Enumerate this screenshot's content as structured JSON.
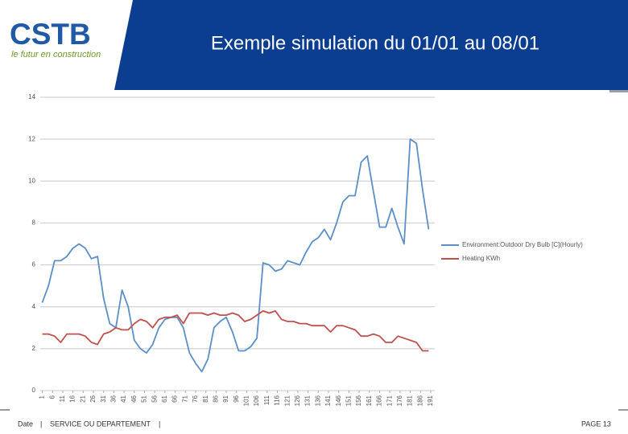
{
  "header": {
    "logo": "CSTB",
    "tagline": "le futur en construction"
  },
  "footer": {
    "date": "Date",
    "separator": "|",
    "department": "SERVICE OU DEPARTEMENT",
    "page": "PAGE 13"
  },
  "chart_data": {
    "type": "line",
    "title": "Exemple simulation du 01/01 au 08/01",
    "x": [
      1,
      4,
      7,
      10,
      13,
      16,
      19,
      22,
      25,
      28,
      31,
      34,
      37,
      40,
      43,
      46,
      49,
      52,
      55,
      58,
      61,
      64,
      67,
      70,
      73,
      76,
      79,
      82,
      85,
      88,
      91,
      94,
      97,
      100,
      103,
      106,
      109,
      112,
      115,
      118,
      121,
      124,
      127,
      130,
      133,
      136,
      139,
      142,
      145,
      148,
      151,
      154,
      157,
      160,
      163,
      166,
      169,
      172,
      175,
      178,
      181,
      184,
      187,
      190
    ],
    "series": [
      {
        "name": "Environment:Outdoor Dry Bulb [C](Hourly)",
        "color": "#5b8fc7",
        "values": [
          4.2,
          5.0,
          6.2,
          6.2,
          6.4,
          6.8,
          7.0,
          6.8,
          6.3,
          6.4,
          4.4,
          3.2,
          3.0,
          4.8,
          4.0,
          2.4,
          2.0,
          1.8,
          2.2,
          3.0,
          3.4,
          3.5,
          3.5,
          3.0,
          1.8,
          1.3,
          0.9,
          1.5,
          3.0,
          3.3,
          3.5,
          2.8,
          1.9,
          1.9,
          2.1,
          2.5,
          6.1,
          6.0,
          5.7,
          5.8,
          6.2,
          6.1,
          6.0,
          6.6,
          7.1,
          7.3,
          7.7,
          7.2,
          8.0,
          9.0,
          9.3,
          9.3,
          10.9,
          11.2,
          9.5,
          7.8,
          7.8,
          8.7,
          7.8,
          7.0,
          12.0,
          11.8,
          9.6,
          7.7
        ]
      },
      {
        "name": "Heating KWh",
        "color": "#c0504d",
        "values": [
          2.7,
          2.7,
          2.6,
          2.3,
          2.7,
          2.7,
          2.7,
          2.6,
          2.3,
          2.2,
          2.7,
          2.8,
          3.0,
          2.9,
          2.9,
          3.2,
          3.4,
          3.3,
          3.0,
          3.4,
          3.5,
          3.5,
          3.6,
          3.2,
          3.7,
          3.7,
          3.7,
          3.6,
          3.7,
          3.6,
          3.6,
          3.7,
          3.6,
          3.3,
          3.4,
          3.6,
          3.8,
          3.7,
          3.8,
          3.4,
          3.3,
          3.3,
          3.2,
          3.2,
          3.1,
          3.1,
          3.1,
          2.8,
          3.1,
          3.1,
          3.0,
          2.9,
          2.6,
          2.6,
          2.7,
          2.6,
          2.3,
          2.3,
          2.6,
          2.5,
          2.4,
          2.3,
          1.9,
          1.9
        ]
      }
    ],
    "xlim": [
      0,
      193
    ],
    "xticks": [
      1,
      6,
      11,
      16,
      21,
      26,
      31,
      36,
      41,
      46,
      51,
      56,
      61,
      66,
      71,
      76,
      81,
      86,
      91,
      96,
      101,
      106,
      111,
      116,
      121,
      126,
      131,
      136,
      141,
      146,
      151,
      156,
      161,
      166,
      171,
      176,
      181,
      186,
      191
    ],
    "ylim": [
      0,
      14
    ],
    "yticks": [
      0,
      2,
      4,
      6,
      8,
      10,
      12,
      14
    ],
    "grid": true,
    "legend": "right"
  }
}
